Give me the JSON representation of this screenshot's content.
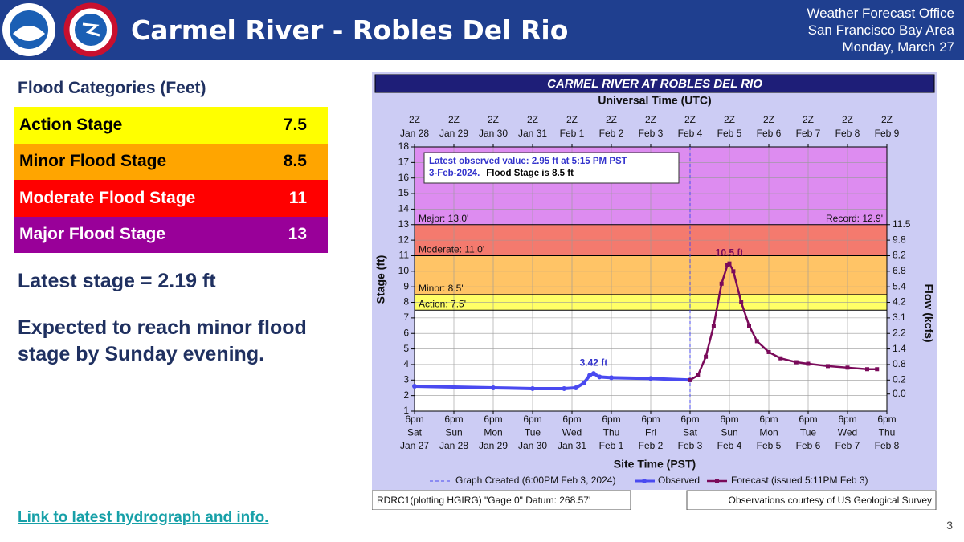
{
  "header": {
    "title": "Carmel River - Robles Del Rio",
    "office": [
      "Weather Forecast Office",
      "San Francisco Bay Area",
      "Monday, March 27"
    ]
  },
  "flood_categories": {
    "title": "Flood Categories (Feet)",
    "rows": [
      [
        "Action Stage",
        7.5
      ],
      [
        "Minor Flood Stage",
        8.5
      ],
      [
        "Moderate Flood Stage",
        11
      ],
      [
        "Major Flood Stage",
        13
      ]
    ]
  },
  "latest_stage": "Latest stage = 2.19 ft",
  "expectation": "Expected to reach minor flood stage by Sunday evening.",
  "link": "Link to latest hydrograph and info.",
  "page_number": "3",
  "chart_data": {
    "type": "line",
    "title": "CARMEL RIVER AT ROBLES DEL RIO",
    "x2label": "Universal Time (UTC)",
    "xlabel": "Site Time (PST)",
    "ylabel": "Stage (ft)",
    "y2label": "Flow (kcfs)",
    "xlim": [
      0,
      12
    ],
    "xticks": [
      {
        "value": 0,
        "label": "6pm\nSat\nJan 27"
      },
      {
        "value": 1,
        "label": "6pm\nSun\nJan 28"
      },
      {
        "value": 2,
        "label": "6pm\nMon\nJan 29"
      },
      {
        "value": 3,
        "label": "6pm\nTue\nJan 30"
      },
      {
        "value": 4,
        "label": "6pm\nWed\nJan 31"
      },
      {
        "value": 5,
        "label": "6pm\nThu\nFeb 1"
      },
      {
        "value": 6,
        "label": "6pm\nFri\nFeb 2"
      },
      {
        "value": 7,
        "label": "6pm\nSat\nFeb 3"
      },
      {
        "value": 8,
        "label": "6pm\nSun\nFeb 4"
      },
      {
        "value": 9,
        "label": "6pm\nMon\nFeb 5"
      },
      {
        "value": 10,
        "label": "6pm\nTue\nFeb 6"
      },
      {
        "value": 11,
        "label": "6pm\nWed\nFeb 7"
      },
      {
        "value": 12,
        "label": "6pm\nThu\nFeb 8"
      }
    ],
    "x2ticks": [
      {
        "value": 0,
        "label": "2Z\nJan 28"
      },
      {
        "value": 1,
        "label": "2Z\nJan 29"
      },
      {
        "value": 2,
        "label": "2Z\nJan 30"
      },
      {
        "value": 3,
        "label": "2Z\nJan 31"
      },
      {
        "value": 4,
        "label": "2Z\nFeb 1"
      },
      {
        "value": 5,
        "label": "2Z\nFeb 2"
      },
      {
        "value": 6,
        "label": "2Z\nFeb 3"
      },
      {
        "value": 7,
        "label": "2Z\nFeb 4"
      },
      {
        "value": 8,
        "label": "2Z\nFeb 5"
      },
      {
        "value": 9,
        "label": "2Z\nFeb 6"
      },
      {
        "value": 10,
        "label": "2Z\nFeb 7"
      },
      {
        "value": 11,
        "label": "2Z\nFeb 8"
      },
      {
        "value": 12,
        "label": "2Z\nFeb 9"
      }
    ],
    "ylim": [
      1,
      18
    ],
    "yticks": [
      1,
      2,
      3,
      4,
      5,
      6,
      7,
      8,
      9,
      10,
      11,
      12,
      13,
      14,
      15,
      16,
      17,
      18
    ],
    "grid": true,
    "rating": [
      {
        "stage": 13,
        "flow": 11.5
      },
      {
        "stage": 12,
        "flow": 9.8
      },
      {
        "stage": 11,
        "flow": 8.2
      },
      {
        "stage": 10,
        "flow": 6.8
      },
      {
        "stage": 9,
        "flow": 5.4
      },
      {
        "stage": 8,
        "flow": 4.2
      },
      {
        "stage": 7,
        "flow": 3.1
      },
      {
        "stage": 6,
        "flow": 2.2
      },
      {
        "stage": 5,
        "flow": 1.4
      },
      {
        "stage": 4,
        "flow": 0.8
      },
      {
        "stage": 3,
        "flow": 0.2
      },
      {
        "stage": 2.1,
        "flow": {
          "value": 0,
          "label": "0.0"
        }
      }
    ],
    "flood_levels": [
      {
        "label": "Action: 7.5'",
        "value": 7.5,
        "color": "#ffff66"
      },
      {
        "label": "Minor: 8.5'",
        "value": 8.5,
        "color": "#ffc466"
      },
      {
        "label": "Moderate: 11.0'",
        "value": 11,
        "color": "#f47a6e"
      },
      {
        "label": "Major: 13.0'",
        "value": 13,
        "color": "#dd8cf0"
      }
    ],
    "record_label": "Record: 12.9'",
    "graph_created": {
      "label": "Graph Created (6:00PM Feb 3, 2024)",
      "x": 7
    },
    "latest_box": [
      "Latest observed value: 2.95 ft at 5:15 PM PST",
      "3-Feb-2024.",
      "Flood Stage is 8.5 ft"
    ],
    "series": [
      {
        "name": "Observed",
        "color": "#4a4af0",
        "x": [
          0,
          1,
          2,
          3,
          3.8,
          4.1,
          4.3,
          4.45,
          4.55,
          4.7,
          5,
          6,
          7
        ],
        "values": [
          2.6,
          2.55,
          2.5,
          2.45,
          2.45,
          2.5,
          2.8,
          3.3,
          3.42,
          3.2,
          3.15,
          3.1,
          3.0
        ]
      },
      {
        "name": "Forecast (issued 5:11PM Feb 3)",
        "color": "#7a0a5a",
        "x": [
          7,
          7.2,
          7.4,
          7.6,
          7.8,
          7.95,
          8,
          8.1,
          8.3,
          8.5,
          8.7,
          9,
          9.3,
          9.7,
          10,
          10.5,
          11,
          11.5,
          11.75
        ],
        "values": [
          3.0,
          3.3,
          4.5,
          6.5,
          9.2,
          10.4,
          10.5,
          10.0,
          8.0,
          6.5,
          5.5,
          4.8,
          4.4,
          4.15,
          4.05,
          3.9,
          3.8,
          3.7,
          3.7
        ]
      }
    ],
    "annotations": [
      {
        "text": "3.42 ft",
        "x": 4.55,
        "y": 3.42,
        "color": "#3333cc"
      },
      {
        "text": "10.5 ft",
        "x": 8,
        "y": 10.5,
        "color": "#7a0a5a"
      }
    ],
    "footer": [
      "RDRC1(plotting HGIRG) \"Gage 0\" Datum: 268.57'",
      "Observations courtesy of US Geological Survey"
    ]
  }
}
